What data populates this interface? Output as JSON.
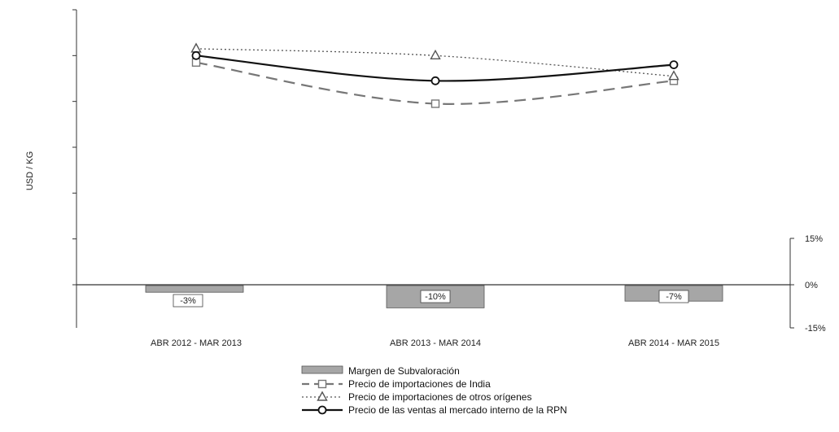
{
  "chart_data": {
    "type": "line+bar",
    "ylabel": "USD / KG",
    "categories": [
      "ABR 2012 - MAR 2013",
      "ABR 2013 - MAR 2014",
      "ABR 2014 - MAR 2015"
    ],
    "secondary_axis": {
      "ticks": [
        "15%",
        "0%",
        "-15%"
      ],
      "tick_values": [
        15,
        0,
        -15
      ],
      "ylim": [
        -15,
        15
      ]
    },
    "bars": {
      "name": "Margen de Subvaloración",
      "values": [
        -3,
        -10,
        -7
      ],
      "labels": [
        "-3%",
        "-10%",
        "-7%"
      ],
      "color": "#a6a6a6"
    },
    "primary_axis": {
      "ylim": [
        0,
        6
      ],
      "tick_values": [
        0,
        1,
        2,
        3,
        4,
        5,
        6
      ],
      "tick_labels_shown": false
    },
    "series": [
      {
        "name": "Precio de importaciones de India",
        "values": [
          4.85,
          3.95,
          4.45
        ],
        "style": "dashed",
        "marker": "square",
        "color": "#777777"
      },
      {
        "name": "Precio de importaciones de otros orígenes",
        "values": [
          5.15,
          5.0,
          4.55
        ],
        "style": "dotted",
        "marker": "triangle",
        "color": "#555555"
      },
      {
        "name": "Precio de las ventas al mercado interno de la RPN",
        "values": [
          5.0,
          4.45,
          4.8
        ],
        "style": "solid",
        "marker": "circle",
        "color": "#111111"
      }
    ],
    "legend_position": "bottom-center",
    "grid": false
  }
}
